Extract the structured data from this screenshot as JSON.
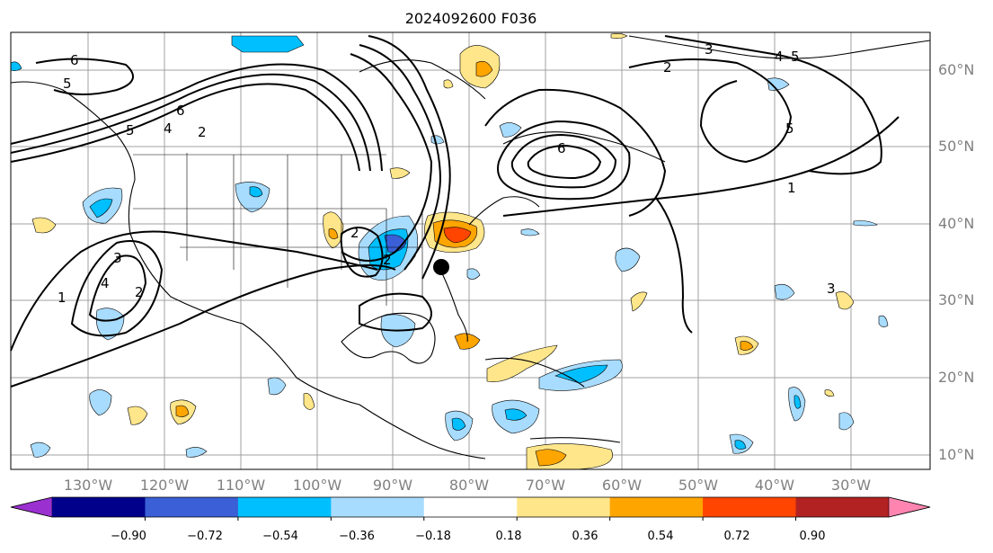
{
  "title": "2024092600 F036",
  "map": {
    "lat_labels": [
      "10°N",
      "20°N",
      "30°N",
      "40°N",
      "50°N",
      "60°N"
    ],
    "lon_labels": [
      "130°W",
      "120°W",
      "110°W",
      "100°W",
      "90°W",
      "80°W",
      "70°W",
      "60°W",
      "50°W",
      "40°W",
      "30°W"
    ],
    "contour_labels": [
      "6",
      "5",
      "6",
      "4",
      "2",
      "5",
      "3",
      "2",
      "1",
      "4",
      "2",
      "6",
      "2",
      "3",
      "5",
      "4",
      "5",
      "1",
      "3",
      "2"
    ],
    "marker": "storm-center-dot"
  },
  "colorbar": {
    "tick_labels": [
      "−0.90",
      "−0.72",
      "−0.54",
      "−0.36",
      "−0.18",
      "0.18",
      "0.36",
      "0.54",
      "0.72",
      "0.90"
    ],
    "colors": [
      "#9b30d0",
      "#00008b",
      "#3a5fd6",
      "#00bfff",
      "#a8dcff",
      "#ffffff",
      "#ffe68a",
      "#ffa500",
      "#ff4500",
      "#b22222",
      "#ff85b0"
    ]
  }
}
